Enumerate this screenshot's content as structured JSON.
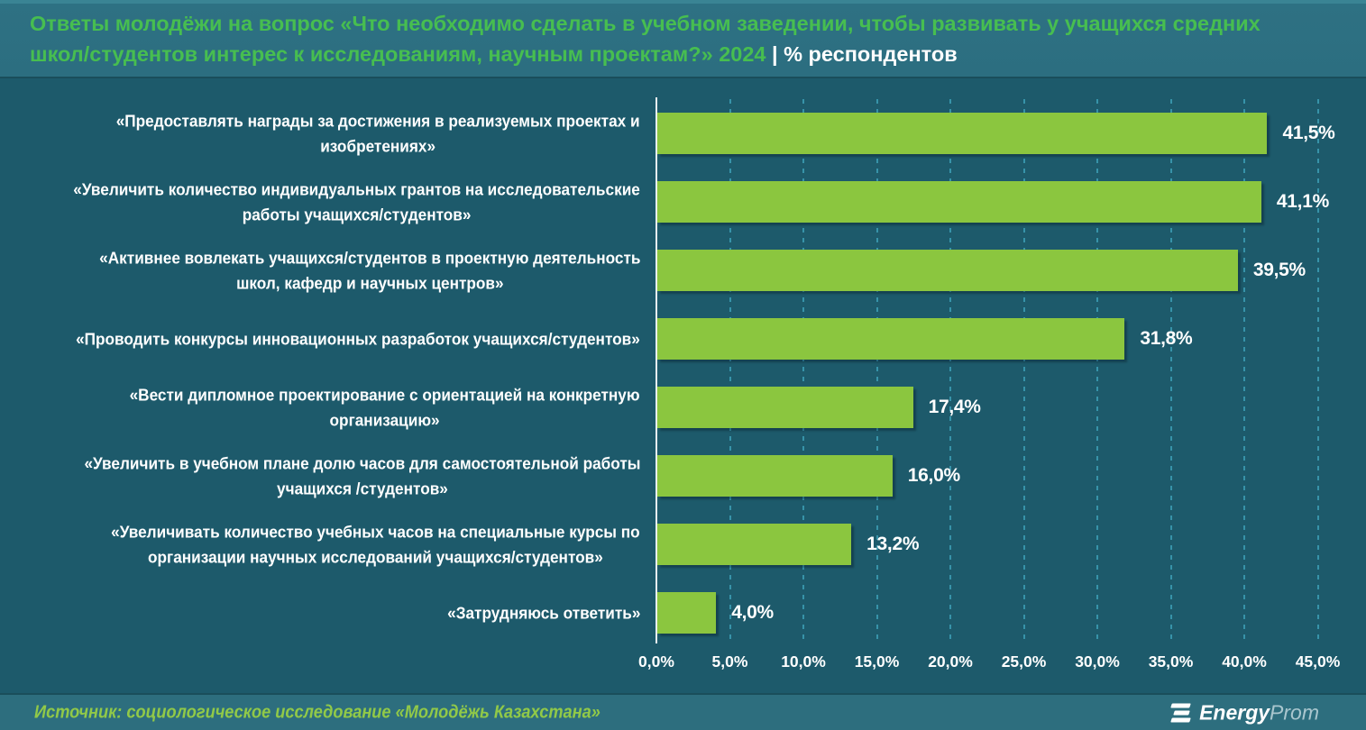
{
  "header": {
    "title_green": "Ответы молодёжи на вопрос «Что необходимо сделать в учебном заведении, чтобы развивать у учащихся средних\nшкол/студентов интерес к исследованиям, научным проектам?» 2024 ",
    "title_white": "| % респондентов"
  },
  "chart_data": {
    "type": "bar",
    "orientation": "horizontal",
    "title": "Ответы молодёжи на вопрос «Что необходимо сделать в учебном заведении, чтобы развивать у учащихся средних школ/студентов интерес к исследованиям, научным проектам?» 2024",
    "unit": "% респондентов",
    "categories": [
      "«Предоставлять награды за достижения в реализуемых проектах и\nизобретениях»",
      "«Увеличить количество индивидуальных грантов на исследовательские\nработы учащихся/студентов»",
      "«Активнее вовлекать учащихся/студентов в проектную деятельность\nшкол, кафедр и научных центров»",
      "«Проводить конкурсы инновационных разработок учащихся/студентов»",
      "«Вести дипломное проектирование с ориентацией на конкретную\nорганизацию»",
      "«Увеличить в учебном плане долю часов для самостоятельной работы\nучащихся /студентов»",
      "«Увеличивать количество учебных часов на специальные курсы по\nорганизации научных исследований учащихся/студентов»",
      "«Затрудняюсь ответить»"
    ],
    "values": [
      41.5,
      41.1,
      39.5,
      31.8,
      17.4,
      16.0,
      13.2,
      4.0
    ],
    "value_labels": [
      "41,5%",
      "41,1%",
      "39,5%",
      "31,8%",
      "17,4%",
      "16,0%",
      "13,2%",
      "4,0%"
    ],
    "x_ticks": [
      "0,0%",
      "5,0%",
      "10,0%",
      "15,0%",
      "20,0%",
      "25,0%",
      "30,0%",
      "35,0%",
      "40,0%",
      "45,0%"
    ],
    "xlim": [
      0,
      45
    ],
    "grid": "dashed-vertical",
    "legend": "none",
    "bar_color": "#8BC63F"
  },
  "footer": {
    "source": "Источник: социологическое исследование «Молодёжь Казахстана»",
    "logo_energy": "Energy",
    "logo_prom": "Prom"
  },
  "colors": {
    "header_bg": "#2E7183",
    "body_bg": "#1D5A6B",
    "footer_bg": "#2D6E7E",
    "bar": "#8BC63F",
    "title_green": "#47BE50",
    "grid": "#3793A9",
    "axis": "#E9F0F2",
    "text": "#FFFFFF"
  }
}
